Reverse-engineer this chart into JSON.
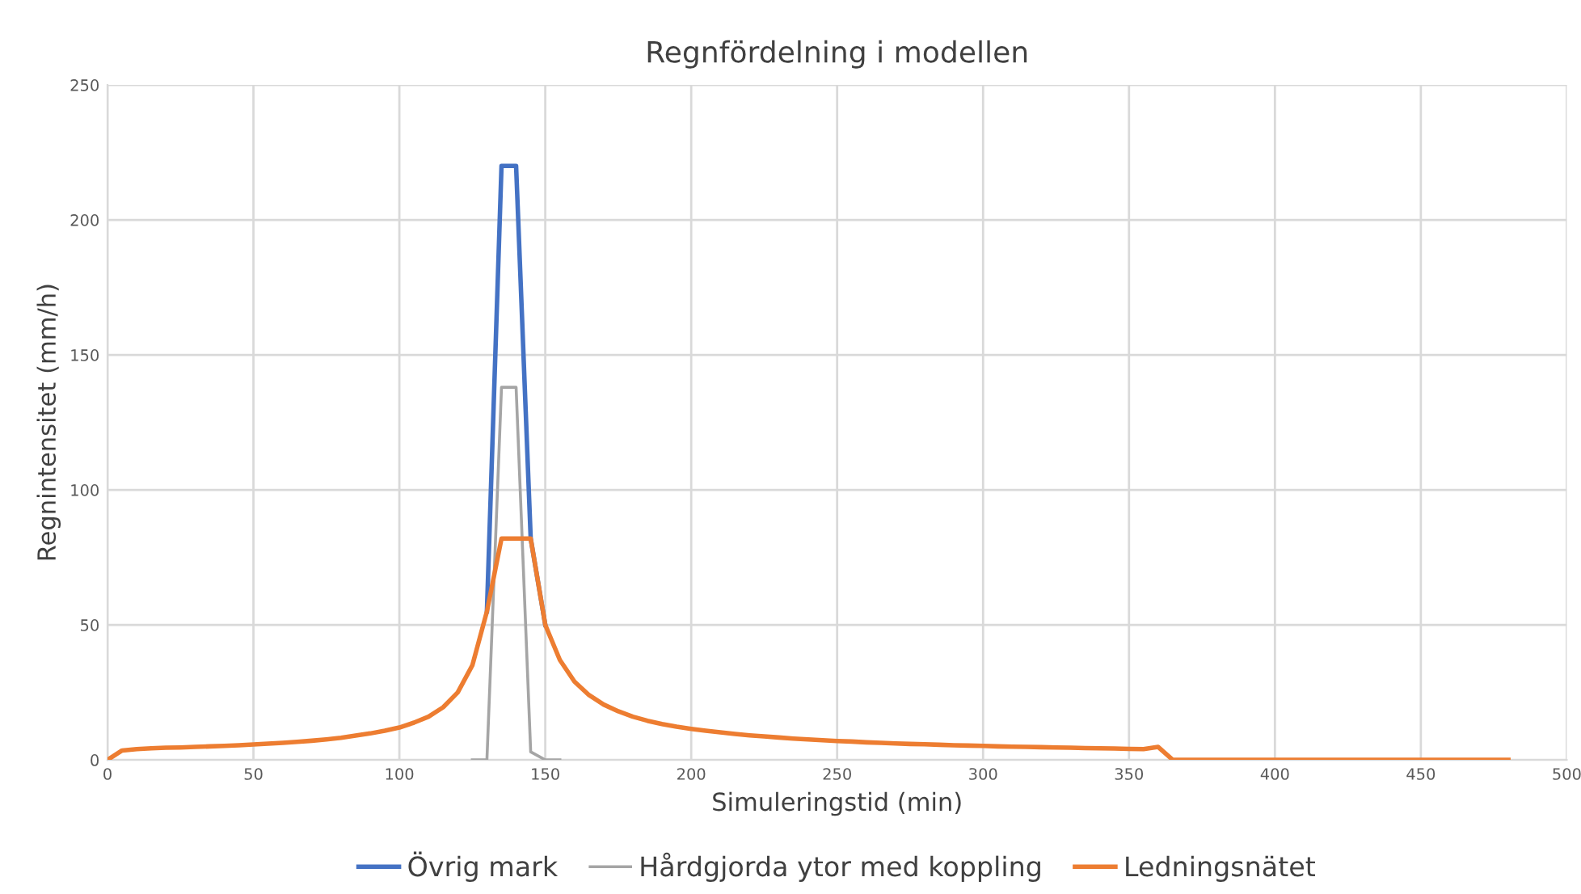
{
  "chart_data": {
    "type": "line",
    "title": "Regnfördelning i modellen",
    "xlabel": "Simuleringstid (min)",
    "ylabel": "Regnintensitet (mm/h)",
    "xlim": [
      0,
      500
    ],
    "xticks": [
      0,
      50,
      100,
      150,
      200,
      250,
      300,
      350,
      400,
      450,
      500
    ],
    "ylim": [
      0,
      250
    ],
    "yticks": [
      0,
      50,
      100,
      150,
      200,
      250
    ],
    "grid": true,
    "legend": "bottom",
    "marker": "none",
    "line_style": "solid",
    "series": [
      {
        "name": "Övrig mark",
        "color": "#4472c4",
        "x": [
          130,
          135,
          140,
          145,
          150
        ],
        "values": [
          55,
          220,
          220,
          82,
          50
        ]
      },
      {
        "name": "Hårdgjorda ytor med koppling",
        "color": "#a5a5a5",
        "x": [
          125,
          130,
          135,
          140,
          145,
          150,
          155
        ],
        "values": [
          0,
          0,
          138,
          138,
          3,
          0,
          0
        ]
      },
      {
        "name": "Ledningsnätet",
        "color": "#ed7d31",
        "x": [
          0,
          5,
          10,
          15,
          20,
          25,
          30,
          35,
          40,
          45,
          50,
          55,
          60,
          65,
          70,
          75,
          80,
          85,
          90,
          95,
          100,
          105,
          110,
          115,
          120,
          125,
          130,
          135,
          140,
          145,
          150,
          155,
          160,
          165,
          170,
          175,
          180,
          185,
          190,
          195,
          200,
          205,
          210,
          215,
          220,
          225,
          230,
          235,
          240,
          245,
          250,
          255,
          260,
          265,
          270,
          275,
          280,
          285,
          290,
          295,
          300,
          305,
          310,
          315,
          320,
          325,
          330,
          335,
          340,
          345,
          350,
          355,
          360,
          365,
          480
        ],
        "values": [
          0,
          3.5,
          4,
          4.3,
          4.5,
          4.6,
          4.8,
          5,
          5.2,
          5.4,
          5.7,
          6,
          6.3,
          6.7,
          7.1,
          7.6,
          8.2,
          9,
          9.8,
          10.8,
          12,
          13.8,
          16,
          19.5,
          25,
          35,
          55,
          82,
          82,
          82,
          50,
          37,
          29,
          24,
          20.5,
          18,
          16,
          14.5,
          13.3,
          12.3,
          11.5,
          10.8,
          10.2,
          9.6,
          9.1,
          8.7,
          8.3,
          7.9,
          7.6,
          7.3,
          7,
          6.8,
          6.5,
          6.3,
          6.1,
          5.9,
          5.8,
          5.6,
          5.4,
          5.3,
          5.2,
          5,
          4.9,
          4.8,
          4.7,
          4.6,
          4.5,
          4.4,
          4.3,
          4.2,
          4.1,
          4,
          4.8,
          0,
          0
        ]
      }
    ]
  }
}
